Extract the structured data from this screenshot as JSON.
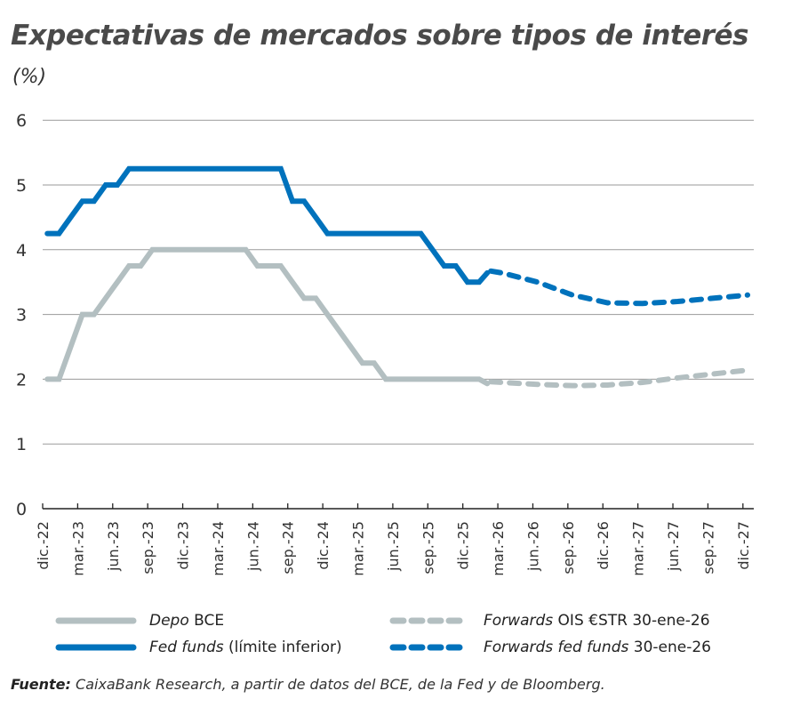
{
  "chart_data": {
    "type": "line",
    "title": "Expectativas de mercados sobre tipos de interés",
    "ylabel": "(%)",
    "ylim": [
      0,
      6
    ],
    "yticks": [
      0,
      1,
      2,
      3,
      4,
      5,
      6
    ],
    "grid": true,
    "x_start": "dic.-22",
    "x_end": "dic.-27",
    "x_unit": "month",
    "xtick_labels": [
      "dic.-22",
      "mar.-23",
      "jun.-23",
      "sep.-23",
      "dic.-23",
      "mar.-24",
      "jun.-24",
      "sep.-24",
      "dic.-24",
      "mar.-25",
      "jun.-25",
      "sep.-25",
      "dic.-25",
      "mar.-26",
      "jun.-26",
      "sep.-26",
      "dic.-26",
      "mar.-27",
      "jun.-27",
      "sep.-27",
      "dic.-27"
    ],
    "legend_placement": "bottom",
    "series": [
      {
        "name_italic": "Depo",
        "name_rest": " BCE",
        "color": "#b3bfc1",
        "style": "solid",
        "months": [
          0,
          1,
          2,
          3,
          4,
          5,
          6,
          7,
          8,
          9,
          17,
          18,
          20,
          21,
          22,
          23,
          24,
          25,
          26,
          27,
          28,
          29,
          37
        ],
        "values": [
          2,
          2,
          2.5,
          3,
          3,
          3.25,
          3.5,
          3.75,
          3.75,
          4,
          4,
          3.75,
          3.75,
          3.5,
          3.25,
          3.25,
          3,
          2.75,
          2.5,
          2.25,
          2.25,
          2,
          2
        ]
      },
      {
        "name_italic": "Fed funds",
        "name_rest": " (límite inferior)",
        "color": "#0072bc",
        "style": "solid",
        "months": [
          0,
          1,
          2,
          3,
          4,
          5,
          6,
          7,
          20,
          21,
          22,
          23,
          24,
          32,
          33,
          34,
          35,
          36,
          37
        ],
        "values": [
          4.25,
          4.25,
          4.5,
          4.75,
          4.75,
          5,
          5,
          5.25,
          5.25,
          4.75,
          4.75,
          4.5,
          4.25,
          4.25,
          4,
          3.75,
          3.75,
          3.5,
          3.5
        ]
      },
      {
        "name_italic": "Forwards",
        "name_rest": " OIS €STR 30-ene-26",
        "color": "#b3bfc1",
        "style": "dashed",
        "months": [
          38,
          39,
          42,
          45,
          48,
          51,
          54,
          57,
          60
        ],
        "values": [
          1.96,
          1.95,
          1.92,
          1.9,
          1.91,
          1.95,
          2.02,
          2.08,
          2.14
        ]
      },
      {
        "name_italic": "Forwards fed funds",
        "name_rest": " 30-ene-26",
        "color": "#0072bc",
        "style": "dashed",
        "months": [
          38,
          39,
          42,
          45,
          48,
          51,
          54,
          57,
          60
        ],
        "values": [
          3.67,
          3.64,
          3.5,
          3.3,
          3.18,
          3.17,
          3.2,
          3.25,
          3.3
        ]
      }
    ]
  },
  "source": {
    "label": "Fuente:",
    "text": " CaixaBank Research, a partir de datos del BCE, de la Fed y de Bloomberg."
  }
}
